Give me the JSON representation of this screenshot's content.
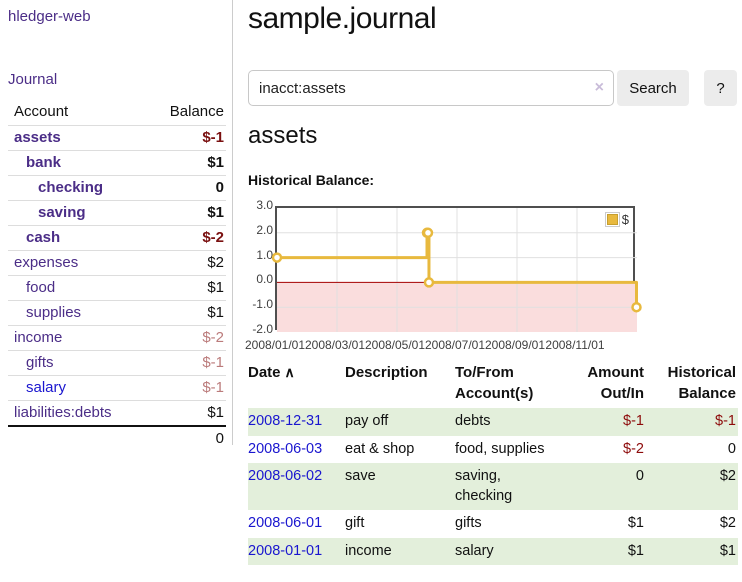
{
  "app": {
    "brand": "hledger-web",
    "nav_journal": "Journal"
  },
  "sidebar": {
    "headers": {
      "account": "Account",
      "balance": "Balance"
    },
    "accounts": [
      {
        "name": "assets",
        "balance": "$-1",
        "depth": 1,
        "bold": true,
        "name_color": "purple",
        "balance_tone": "neg-strong"
      },
      {
        "name": "bank",
        "balance": "$1",
        "depth": 2,
        "bold": true,
        "name_color": "purple",
        "balance_tone": "normal"
      },
      {
        "name": "checking",
        "balance": "0",
        "depth": 3,
        "bold": true,
        "name_color": "purple",
        "balance_tone": "normal"
      },
      {
        "name": "saving",
        "balance": "$1",
        "depth": 3,
        "bold": true,
        "name_color": "purple",
        "balance_tone": "normal"
      },
      {
        "name": "cash",
        "balance": "$-2",
        "depth": 2,
        "bold": true,
        "name_color": "purple",
        "balance_tone": "neg-strong"
      },
      {
        "name": "expenses",
        "balance": "$2",
        "depth": 1,
        "bold": false,
        "name_color": "purple",
        "balance_tone": "normal"
      },
      {
        "name": "food",
        "balance": "$1",
        "depth": 2,
        "bold": false,
        "name_color": "purple",
        "balance_tone": "normal"
      },
      {
        "name": "supplies",
        "balance": "$1",
        "depth": 2,
        "bold": false,
        "name_color": "purple",
        "balance_tone": "normal"
      },
      {
        "name": "income",
        "balance": "$-2",
        "depth": 1,
        "bold": false,
        "name_color": "purple",
        "balance_tone": "neg-soft"
      },
      {
        "name": "gifts",
        "balance": "$-1",
        "depth": 2,
        "bold": false,
        "name_color": "purple",
        "balance_tone": "neg-soft"
      },
      {
        "name": "salary",
        "balance": "$-1",
        "depth": 2,
        "bold": false,
        "name_color": "blue",
        "balance_tone": "neg-soft"
      },
      {
        "name": "liabilities:debts",
        "balance": "$1",
        "depth": 1,
        "bold": false,
        "name_color": "purple",
        "balance_tone": "normal"
      }
    ],
    "total": "0"
  },
  "header": {
    "title": "sample.journal"
  },
  "search": {
    "value": "inacct:assets",
    "clear_icon": "×",
    "button_label": "Search",
    "help_label": "?"
  },
  "account_page": {
    "heading": "assets",
    "chart_heading": "Historical Balance:"
  },
  "chart_data": {
    "type": "line",
    "title": "Historical Balance",
    "series": [
      {
        "name": "$",
        "color": "#e8b93e",
        "points": [
          [
            "2008-01-01",
            1
          ],
          [
            "2008-06-01",
            2
          ],
          [
            "2008-06-02",
            2
          ],
          [
            "2008-06-03",
            0
          ],
          [
            "2008-12-31",
            -1
          ]
        ]
      }
    ],
    "ylim": [
      -2,
      3
    ],
    "yticks": [
      "3.0",
      "2.0",
      "1.0",
      "0.0",
      "-1.0",
      "-2.0"
    ],
    "xticks": [
      "2008/01/01",
      "2008/03/01",
      "2008/05/01",
      "2008/07/01",
      "2008/09/01",
      "2008/11/01"
    ],
    "grid": true,
    "legend": "$",
    "legend_position": "top-right",
    "negative_region_fill": "#fadddd",
    "zero_line_color": "#a40000"
  },
  "register": {
    "sort_icon": "∧",
    "headers": {
      "date": "Date",
      "description": "Description",
      "accounts": "To/From Account(s)",
      "amount": "Amount Out/In",
      "balance": "Historical Balance"
    },
    "rows": [
      {
        "date": "2008-12-31",
        "description": "pay off",
        "accounts": "debts",
        "amount": "$-1",
        "amount_negative": true,
        "balance": "$-1",
        "balance_negative": true,
        "stripe": true
      },
      {
        "date": "2008-06-03",
        "description": "eat & shop",
        "accounts": "food, supplies",
        "amount": "$-2",
        "amount_negative": true,
        "balance": "0",
        "balance_negative": false,
        "stripe": false
      },
      {
        "date": "2008-06-02",
        "description": "save",
        "accounts": "saving, checking",
        "amount": "0",
        "amount_negative": false,
        "balance": "$2",
        "balance_negative": false,
        "stripe": true
      },
      {
        "date": "2008-06-01",
        "description": "gift",
        "accounts": "gifts",
        "amount": "$1",
        "amount_negative": false,
        "balance": "$2",
        "balance_negative": false,
        "stripe": false
      },
      {
        "date": "2008-01-01",
        "description": "income",
        "accounts": "salary",
        "amount": "$1",
        "amount_negative": false,
        "balance": "$1",
        "balance_negative": false,
        "stripe": true
      }
    ]
  }
}
